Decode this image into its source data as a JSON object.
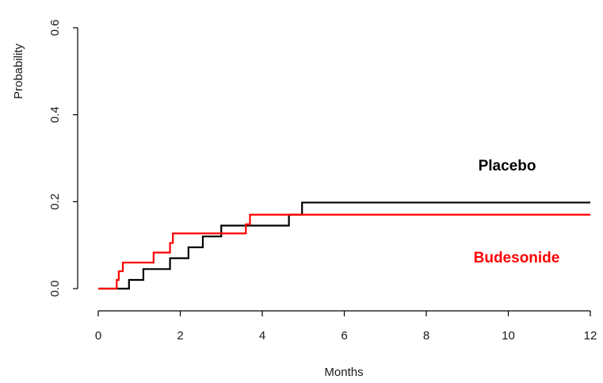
{
  "chart_data": {
    "type": "line",
    "step": true,
    "title": "",
    "xlabel": "Months",
    "ylabel": "Probability",
    "xlim": [
      0,
      12
    ],
    "ylim": [
      0,
      0.6
    ],
    "x_ticks": [
      0,
      2,
      4,
      6,
      8,
      10,
      12
    ],
    "x_tick_labels": [
      "0",
      "2",
      "4",
      "6",
      "8",
      "10",
      "12"
    ],
    "y_ticks": [
      0.0,
      0.2,
      0.4,
      0.6
    ],
    "y_tick_labels": [
      "0.0",
      "0.2",
      "0.4",
      "0.6"
    ],
    "grid": false,
    "legend": "none",
    "series": [
      {
        "name": "Placebo",
        "color": "#000000",
        "points": [
          [
            0,
            0
          ],
          [
            0.45,
            0
          ],
          [
            0.75,
            0.02
          ],
          [
            1.1,
            0.045
          ],
          [
            1.75,
            0.07
          ],
          [
            2.2,
            0.095
          ],
          [
            2.55,
            0.12
          ],
          [
            3.0,
            0.145
          ],
          [
            4.65,
            0.17
          ],
          [
            4.97,
            0.198
          ],
          [
            12,
            0.198
          ]
        ]
      },
      {
        "name": "Budesonide",
        "color": "#ff0000",
        "points": [
          [
            0,
            0
          ],
          [
            0.45,
            0.02
          ],
          [
            0.5,
            0.04
          ],
          [
            0.6,
            0.06
          ],
          [
            1.35,
            0.083
          ],
          [
            1.75,
            0.105
          ],
          [
            1.82,
            0.127
          ],
          [
            3.6,
            0.148
          ],
          [
            3.7,
            0.17
          ],
          [
            12,
            0.17
          ]
        ]
      }
    ]
  }
}
